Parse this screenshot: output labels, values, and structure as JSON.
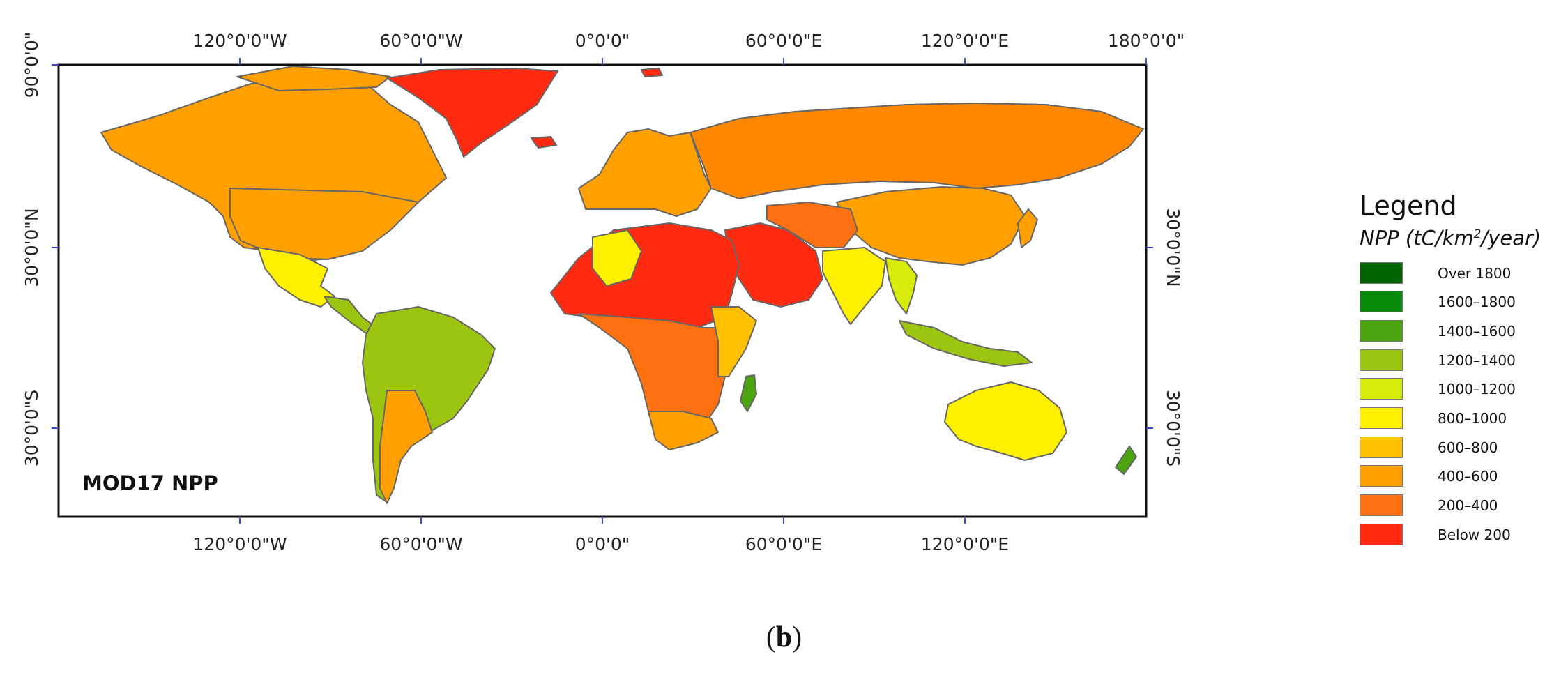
{
  "map": {
    "label": "MOD17 NPP",
    "top_axis_labels": [
      "120°0'0\"W",
      "60°0'0\"W",
      "0°0'0\"",
      "60°0'0\"E",
      "120°0'0\"E",
      "180°0'0\""
    ],
    "bottom_axis_labels": [
      "120°0'0\"W",
      "60°0'0\"W",
      "0°0'0\"",
      "60°0'0\"E",
      "120°0'0\"E"
    ],
    "left_axis_labels": [
      "90°0'0\"",
      "30°0'0\"N",
      "30°0'0\"S"
    ],
    "right_axis_labels": [
      "30°0'0\"N",
      "30°0'0\"S"
    ]
  },
  "legend": {
    "title": "Legend",
    "subtitle_prefix": "NPP (tC/km",
    "subtitle_sup": "2",
    "subtitle_suffix": "/year)",
    "classes": [
      {
        "label": "Over 1800",
        "color": "#006400"
      },
      {
        "label": "1600–1800",
        "color": "#0a8a0a"
      },
      {
        "label": "1400–1600",
        "color": "#4ca410"
      },
      {
        "label": "1200–1400",
        "color": "#9cc510"
      },
      {
        "label": "1000–1200",
        "color": "#d8ec0c"
      },
      {
        "label": "800–1000",
        "color": "#fff000"
      },
      {
        "label": "600–800",
        "color": "#ffc000"
      },
      {
        "label": "400–600",
        "color": "#ffa000"
      },
      {
        "label": "200–400",
        "color": "#ff7010"
      },
      {
        "label": "Below 200",
        "color": "#ff2a10"
      }
    ]
  },
  "caption": {
    "open": "(",
    "letter": "b",
    "close": ")"
  }
}
